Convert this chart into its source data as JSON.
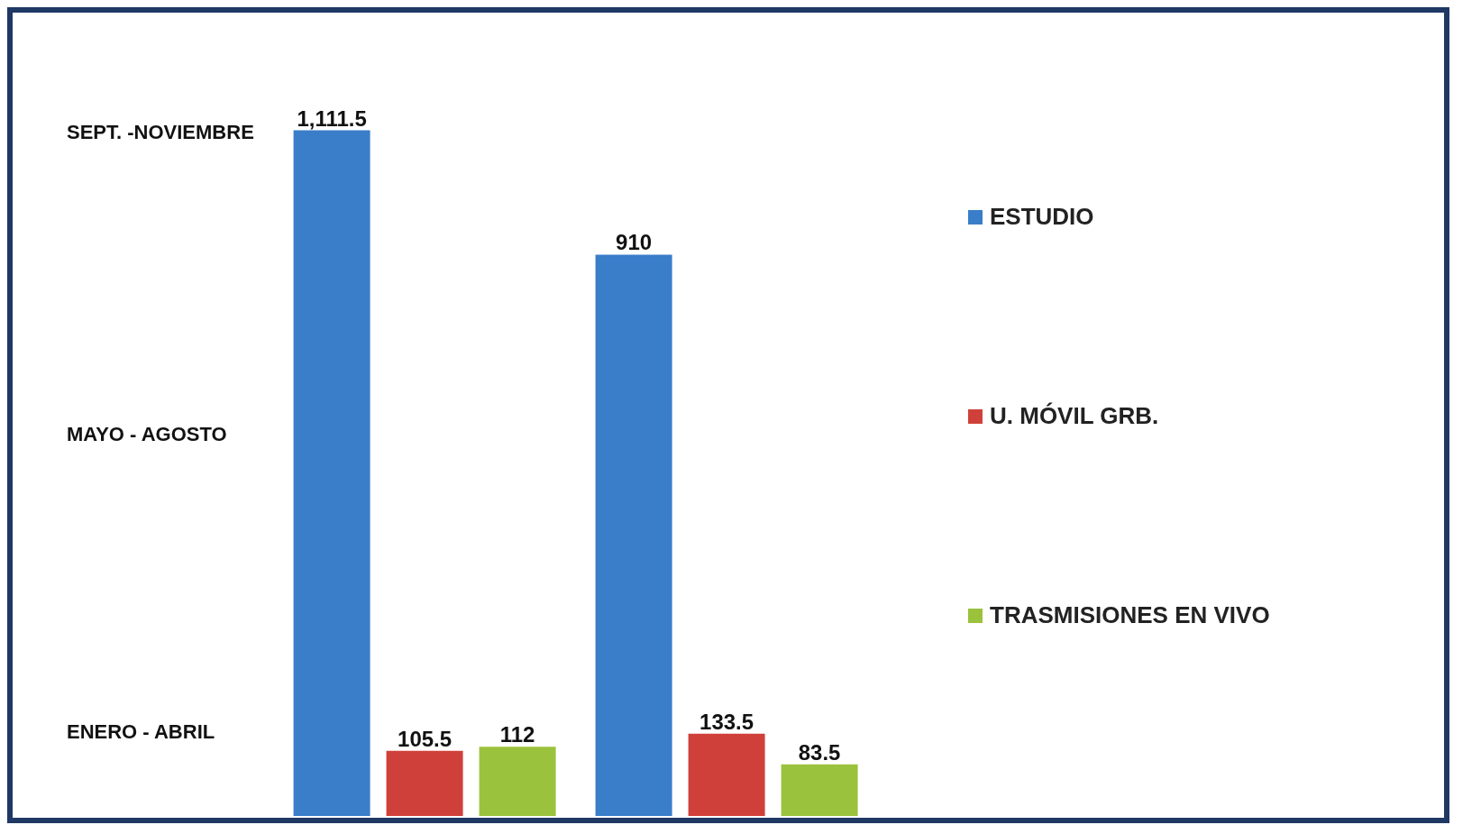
{
  "chart_data": {
    "type": "bar",
    "categories": [
      null,
      null
    ],
    "series": [
      {
        "name": "ESTUDIO",
        "color": "#3a7dc9",
        "values": [
          1111.5,
          910
        ],
        "value_labels": [
          "1,111.5",
          "910"
        ]
      },
      {
        "name": "U. MÓVIL GRB.",
        "color": "#d0403a",
        "values": [
          105.5,
          133.5
        ],
        "value_labels": [
          "105.5",
          "133.5"
        ]
      },
      {
        "name": "TRASMISIONES EN VIVO",
        "color": "#9bc23c",
        "values": [
          112,
          83.5
        ],
        "value_labels": [
          "112",
          "83.5"
        ]
      }
    ],
    "annotations": [
      "SEPT. -NOVIEMBRE",
      "MAYO - AGOSTO",
      "ENERO  - ABRIL"
    ],
    "legend": "right"
  }
}
